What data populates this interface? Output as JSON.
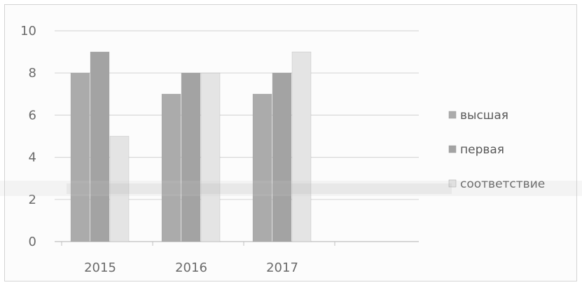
{
  "chart_data": {
    "type": "bar",
    "categories": [
      "2015",
      "2016",
      "2017"
    ],
    "series": [
      {
        "name": "высшая",
        "values": [
          8,
          7,
          7
        ]
      },
      {
        "name": "первая",
        "values": [
          9,
          8,
          8
        ]
      },
      {
        "name": "соответствие",
        "values": [
          5,
          8,
          9
        ]
      }
    ],
    "y_ticks": [
      "0",
      "2",
      "4",
      "6",
      "8",
      "10"
    ],
    "ylim": [
      0,
      10
    ],
    "grid": true,
    "legend_position": "right",
    "colors": [
      "#ababab",
      "#a3a3a3",
      "#e4e4e4"
    ]
  }
}
